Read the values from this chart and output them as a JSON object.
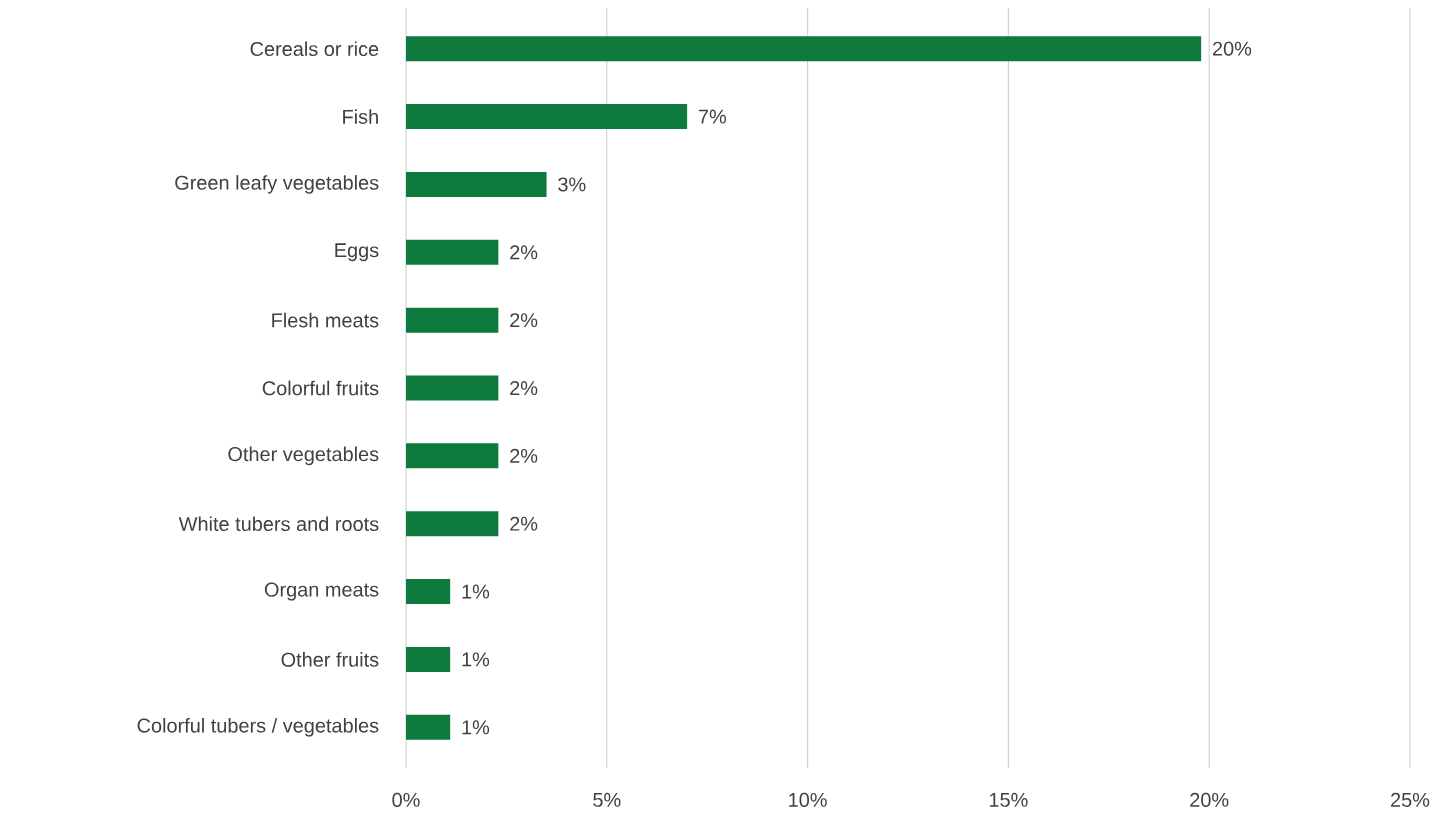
{
  "chart_data": {
    "type": "bar",
    "orientation": "horizontal",
    "categories": [
      "Cereals or rice",
      "Fish",
      "Green leafy vegetables",
      "Eggs",
      "Flesh meats",
      "Colorful fruits",
      "Other vegetables",
      "White tubers and roots",
      "Organ meats",
      "Other fruits",
      "Colorful tubers / vegetables"
    ],
    "values": [
      19.8,
      7.0,
      3.5,
      2.3,
      2.3,
      2.3,
      2.3,
      2.3,
      1.1,
      1.1,
      1.1
    ],
    "value_labels": [
      "20%",
      "7%",
      "3%",
      "2%",
      "2%",
      "2%",
      "2%",
      "2%",
      "1%",
      "1%",
      "1%"
    ],
    "color": "#0e7a3e",
    "xlim": [
      0,
      25
    ],
    "xticks": [
      {
        "value": 0,
        "label": "0%"
      },
      {
        "value": 5,
        "label": "5%"
      },
      {
        "value": 10,
        "label": "10%"
      },
      {
        "value": 15,
        "label": "15%"
      },
      {
        "value": 20,
        "label": "20%"
      },
      {
        "value": 25,
        "label": "25%"
      }
    ],
    "grid": "x"
  }
}
